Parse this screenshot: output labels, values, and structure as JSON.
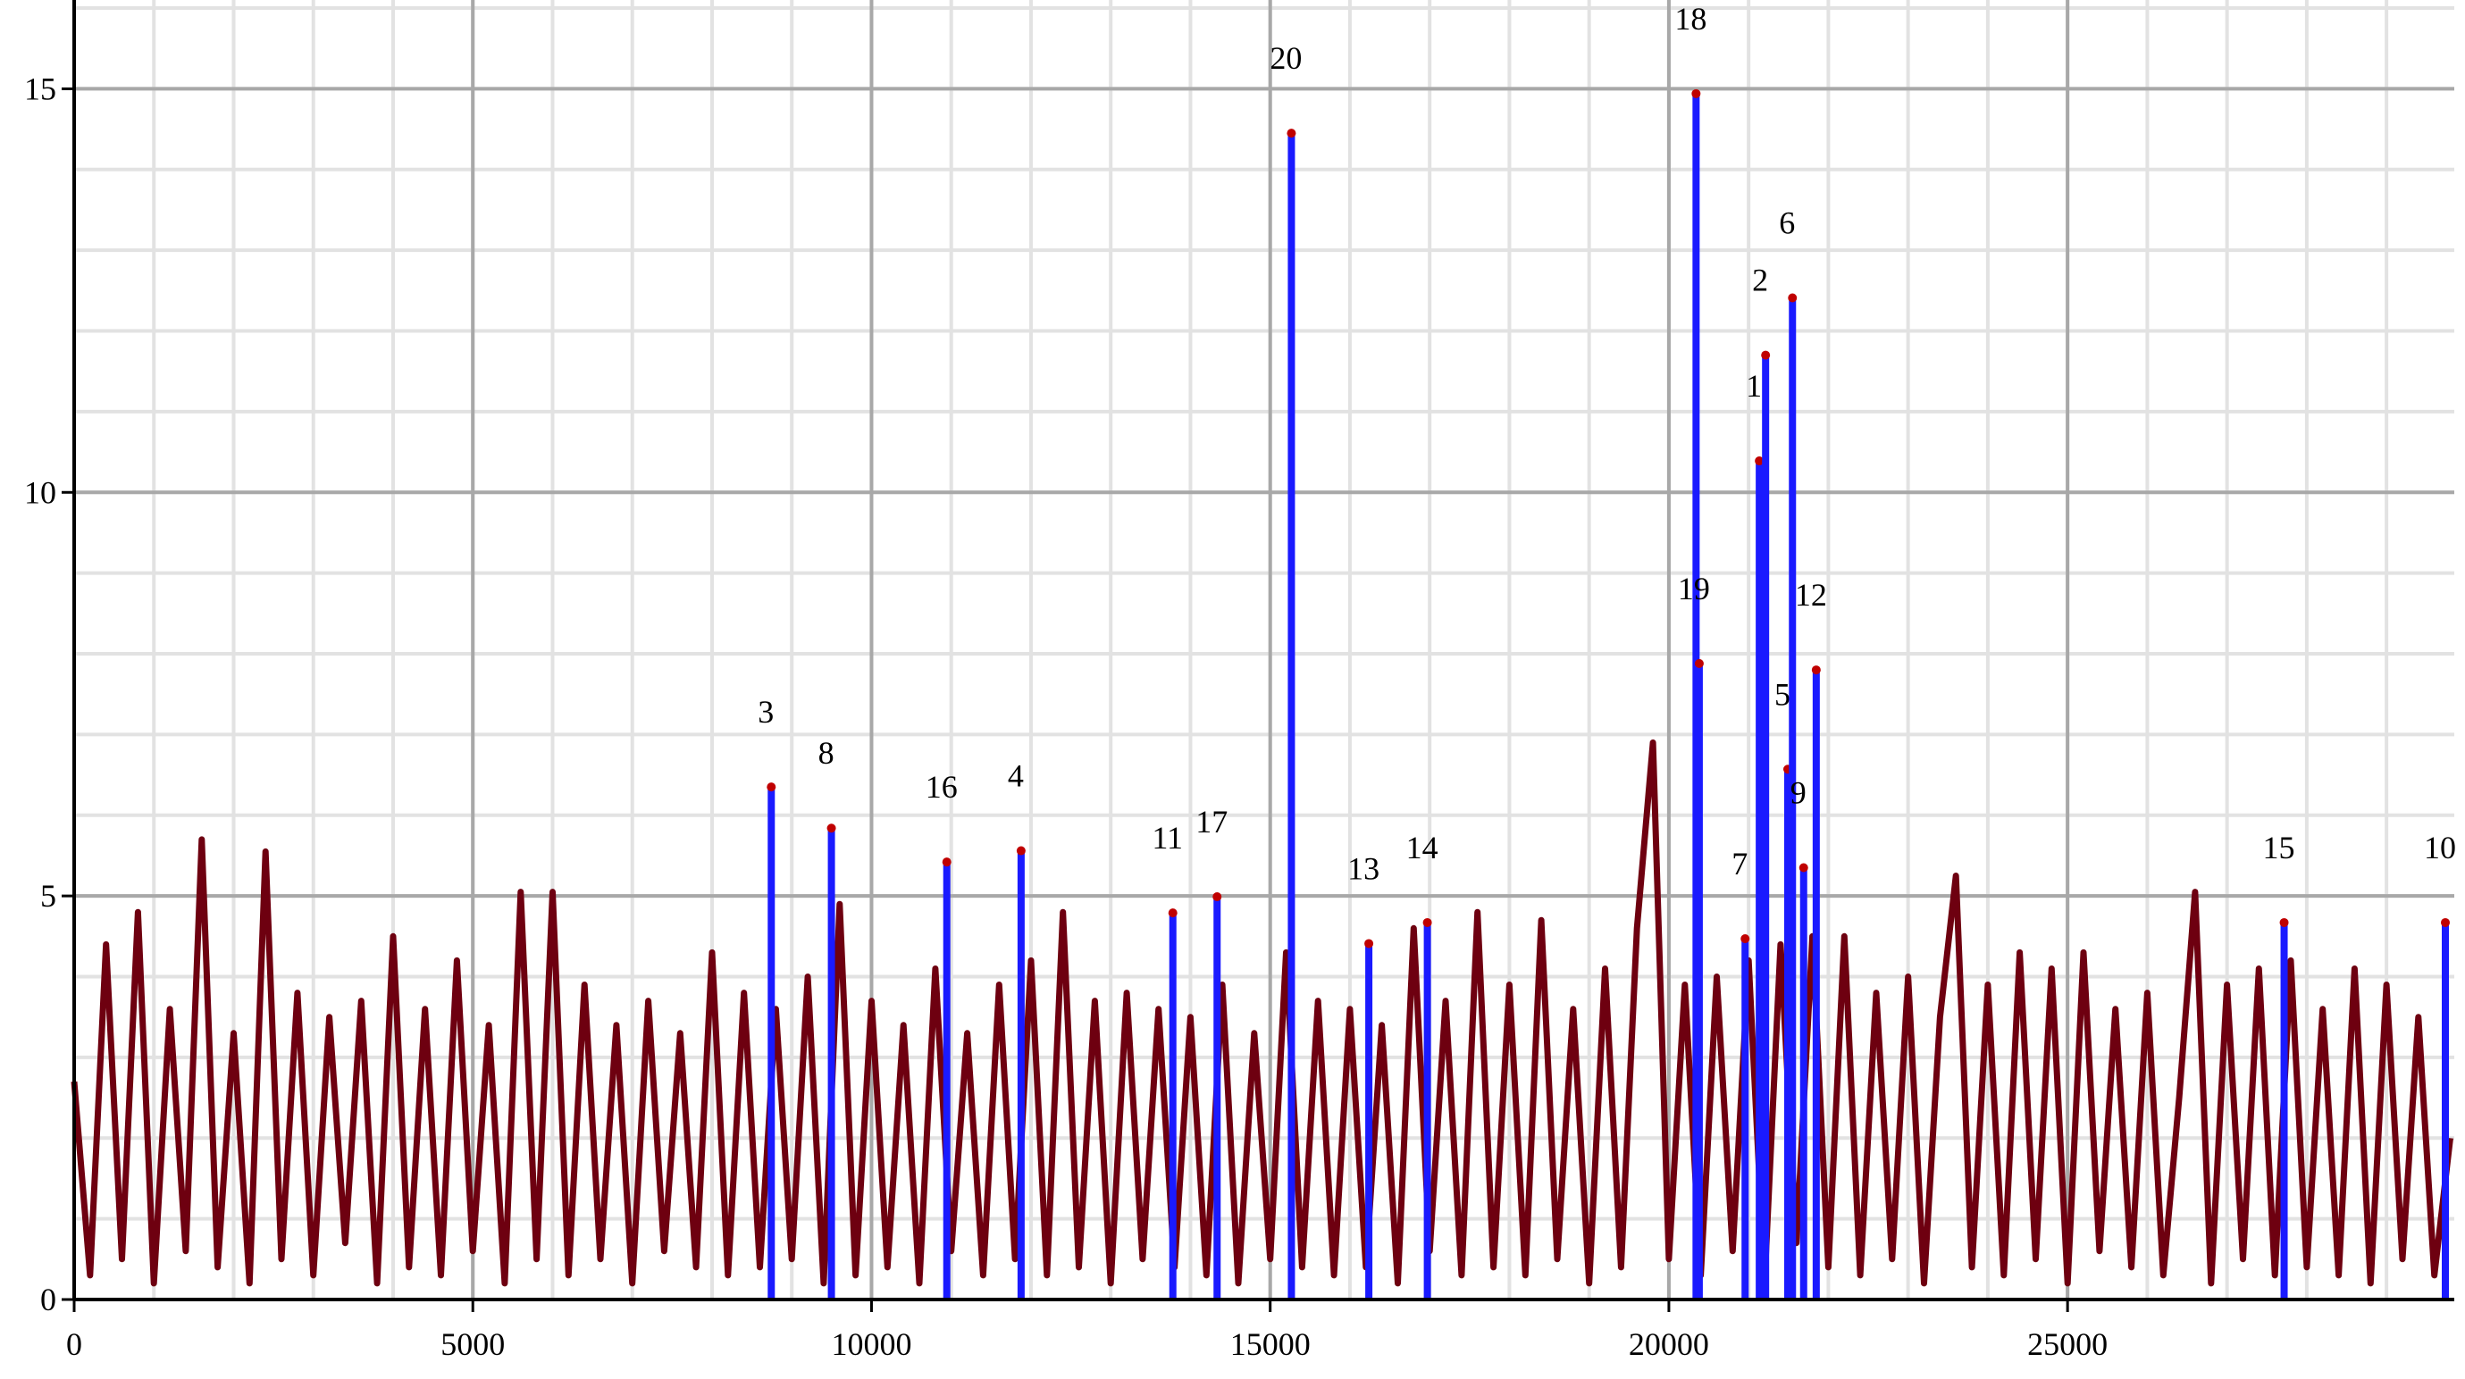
{
  "chart_data": {
    "type": "line",
    "xlim": [
      0,
      29850
    ],
    "ylim": [
      0,
      16.1
    ],
    "xticks": [
      0,
      5000,
      10000,
      15000,
      20000,
      25000
    ],
    "yticks": [
      0,
      5,
      10,
      15
    ],
    "grid": true,
    "minor_grid": true,
    "series": [
      {
        "color": "#6e0010",
        "x": [
          0,
          200,
          400,
          600,
          800,
          1000,
          1200,
          1400,
          1600,
          1800,
          2000,
          2200,
          2400,
          2600,
          2800,
          3000,
          3200,
          3400,
          3600,
          3800,
          4000,
          4200,
          4400,
          4600,
          4800,
          5000,
          5200,
          5400,
          5600,
          5800,
          6000,
          6200,
          6400,
          6600,
          6800,
          7000,
          7200,
          7400,
          7600,
          7800,
          8000,
          8200,
          8400,
          8600,
          8800,
          9000,
          9200,
          9400,
          9600,
          9800,
          10000,
          10200,
          10400,
          10600,
          10800,
          11000,
          11200,
          11400,
          11600,
          11800,
          12000,
          12200,
          12400,
          12600,
          12800,
          13000,
          13200,
          13400,
          13600,
          13800,
          14000,
          14200,
          14400,
          14600,
          14800,
          15000,
          15200,
          15400,
          15600,
          15800,
          16000,
          16200,
          16400,
          16600,
          16800,
          17000,
          17200,
          17400,
          17600,
          17800,
          18000,
          18200,
          18400,
          18600,
          18800,
          19000,
          19200,
          19400,
          19600,
          19800,
          20000,
          20200,
          20400,
          20600,
          20800,
          21000,
          21200,
          21400,
          21600,
          21800,
          22000,
          22200,
          22400,
          22600,
          22800,
          23000,
          23200,
          23400,
          23600,
          23800,
          24000,
          24200,
          24400,
          24600,
          24800,
          25000,
          25200,
          25400,
          25600,
          25800,
          26000,
          26200,
          26400,
          26600,
          26800,
          27000,
          27200,
          27400,
          27600,
          27800,
          28000,
          28200,
          28400,
          28600,
          28800,
          29000,
          29200,
          29400,
          29600,
          29800
        ],
        "values": [
          2.7,
          0.3,
          4.4,
          0.5,
          4.8,
          0.2,
          3.6,
          0.6,
          5.7,
          0.4,
          3.3,
          0.2,
          5.55,
          0.5,
          3.8,
          0.3,
          3.5,
          0.7,
          3.7,
          0.2,
          4.5,
          0.4,
          3.6,
          0.3,
          4.2,
          0.6,
          3.4,
          0.2,
          5.05,
          0.5,
          5.05,
          0.3,
          3.9,
          0.5,
          3.4,
          0.2,
          3.7,
          0.6,
          3.3,
          0.4,
          4.3,
          0.3,
          3.8,
          0.4,
          3.6,
          0.5,
          4.0,
          0.2,
          4.9,
          0.3,
          3.7,
          0.4,
          3.4,
          0.2,
          4.1,
          0.6,
          3.3,
          0.3,
          3.9,
          0.5,
          4.2,
          0.3,
          4.8,
          0.4,
          3.7,
          0.2,
          3.8,
          0.5,
          3.6,
          0.4,
          3.5,
          0.3,
          3.9,
          0.2,
          3.3,
          0.5,
          4.3,
          0.4,
          3.7,
          0.3,
          3.6,
          0.4,
          3.4,
          0.2,
          4.6,
          0.6,
          3.7,
          0.3,
          4.8,
          0.4,
          3.9,
          0.3,
          4.7,
          0.5,
          3.6,
          0.2,
          4.1,
          0.4,
          4.6,
          6.9,
          0.5,
          3.9,
          0.3,
          4.0,
          0.6,
          4.2,
          0.2,
          4.4,
          0.7,
          4.5,
          0.4,
          4.5,
          0.3,
          3.8,
          0.5,
          4.0,
          0.2,
          3.5,
          5.25,
          0.4,
          3.9,
          0.3,
          4.3,
          0.5,
          4.1,
          0.2,
          4.3,
          0.6,
          3.6,
          0.4,
          3.8,
          0.3,
          2.5,
          5.05,
          0.2,
          3.9,
          0.5,
          4.1,
          0.3,
          4.2,
          0.4,
          3.6,
          0.3,
          4.1,
          0.2,
          3.9,
          0.5,
          3.5,
          0.3,
          2.0
        ]
      }
    ],
    "peaks": {
      "color": "#1a1aff",
      "labels": [
        "3",
        "8",
        "16",
        "4",
        "11",
        "17",
        "20",
        "13",
        "14",
        "18",
        "19",
        "7",
        "1",
        "2",
        "5",
        "6",
        "9",
        "12",
        "15",
        "10"
      ],
      "x": [
        8743,
        9497,
        10944,
        11876,
        13779,
        14334,
        15266,
        16237,
        16971,
        20341,
        20381,
        20956,
        21134,
        21213,
        21491,
        21550,
        21690,
        21848,
        27716,
        29738
      ],
      "values": [
        6.35,
        5.84,
        5.42,
        5.56,
        4.79,
        4.99,
        14.45,
        4.41,
        4.67,
        14.94,
        7.88,
        4.47,
        10.39,
        11.7,
        6.57,
        12.41,
        5.35,
        7.8,
        4.67,
        4.67
      ]
    }
  }
}
